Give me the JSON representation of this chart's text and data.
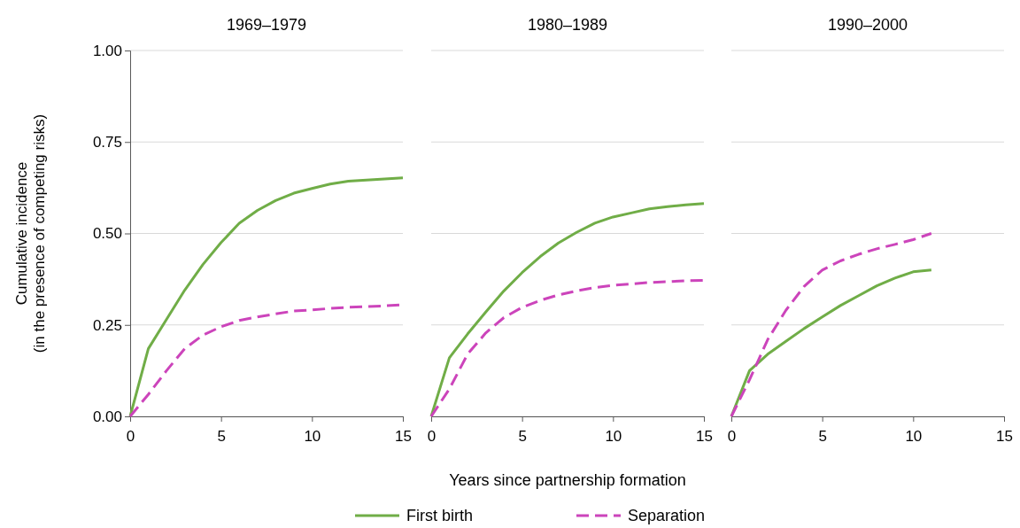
{
  "chart_data": [
    {
      "type": "line",
      "title": "1969–1979",
      "ylabel": "Cumulative  incidence\n(in the presence of competing risks)",
      "xlim": [
        0,
        15
      ],
      "xticks": [
        0,
        5,
        10,
        15
      ],
      "ylim": [
        0,
        1
      ],
      "yticks": [
        {
          "value": 0,
          "label": "0.00"
        },
        {
          "value": 0.25,
          "label": "0.25"
        },
        {
          "value": 0.5,
          "label": "0.50"
        },
        {
          "value": 0.75,
          "label": "0.75"
        },
        {
          "value": 1,
          "label": "1.00"
        }
      ],
      "grid": "y",
      "x": [
        0,
        1,
        2,
        3,
        4,
        5,
        6,
        7,
        8,
        9,
        10,
        11,
        12,
        13,
        14,
        15
      ],
      "series": [
        {
          "color": "#70ad47",
          "line_style": "solid",
          "values": [
            0,
            0.185,
            0.265,
            0.345,
            0.415,
            0.475,
            0.528,
            0.563,
            0.59,
            0.61,
            0.623,
            0.635,
            0.643,
            0.646,
            0.649,
            0.652
          ]
        },
        {
          "color": "#cc44bb",
          "line_style": "dashed",
          "values": [
            0,
            0.06,
            0.125,
            0.185,
            0.222,
            0.245,
            0.262,
            0.272,
            0.28,
            0.288,
            0.291,
            0.295,
            0.298,
            0.3,
            0.302,
            0.305
          ]
        }
      ]
    },
    {
      "type": "line",
      "title": "1980–1989",
      "xlabel": "Years since partnership formation",
      "legend": "bottom",
      "tick_labels": "x",
      "xlim": [
        0,
        15
      ],
      "xticks": [
        0,
        5,
        10,
        15
      ],
      "ylim": [
        0,
        1
      ],
      "yticks": [
        0,
        0.25,
        0.5,
        0.75,
        1
      ],
      "grid": "y",
      "x": [
        0,
        1,
        2,
        3,
        4,
        5,
        6,
        7,
        8,
        9,
        10,
        11,
        12,
        13,
        14,
        15
      ],
      "series": [
        {
          "name": "First birth",
          "color": "#70ad47",
          "line_style": "solid",
          "values": [
            0,
            0.16,
            0.225,
            0.285,
            0.343,
            0.393,
            0.437,
            0.474,
            0.503,
            0.528,
            0.545,
            0.556,
            0.567,
            0.573,
            0.578,
            0.582
          ]
        },
        {
          "name": "Separation",
          "color": "#cc44bb",
          "line_style": "dashed",
          "values": [
            0,
            0.075,
            0.17,
            0.228,
            0.27,
            0.298,
            0.317,
            0.332,
            0.343,
            0.352,
            0.358,
            0.362,
            0.366,
            0.368,
            0.371,
            0.372
          ]
        }
      ]
    },
    {
      "type": "line",
      "title": "1990–2000",
      "tick_labels": "x",
      "xlim": [
        0,
        15
      ],
      "xticks": [
        0,
        5,
        10,
        15
      ],
      "ylim": [
        0,
        1
      ],
      "yticks": [
        0,
        0.25,
        0.5,
        0.75,
        1
      ],
      "grid": "y",
      "x": [
        0,
        1,
        2,
        3,
        4,
        5,
        6,
        7,
        8,
        9,
        10,
        11
      ],
      "series": [
        {
          "color": "#70ad47",
          "line_style": "solid",
          "values": [
            0,
            0.125,
            0.17,
            0.205,
            0.24,
            0.272,
            0.303,
            0.33,
            0.357,
            0.378,
            0.395,
            0.4
          ]
        },
        {
          "color": "#cc44bb",
          "line_style": "dashed",
          "values": [
            0,
            0.1,
            0.21,
            0.29,
            0.355,
            0.4,
            0.425,
            0.443,
            0.458,
            0.47,
            0.483,
            0.5
          ]
        }
      ]
    }
  ]
}
